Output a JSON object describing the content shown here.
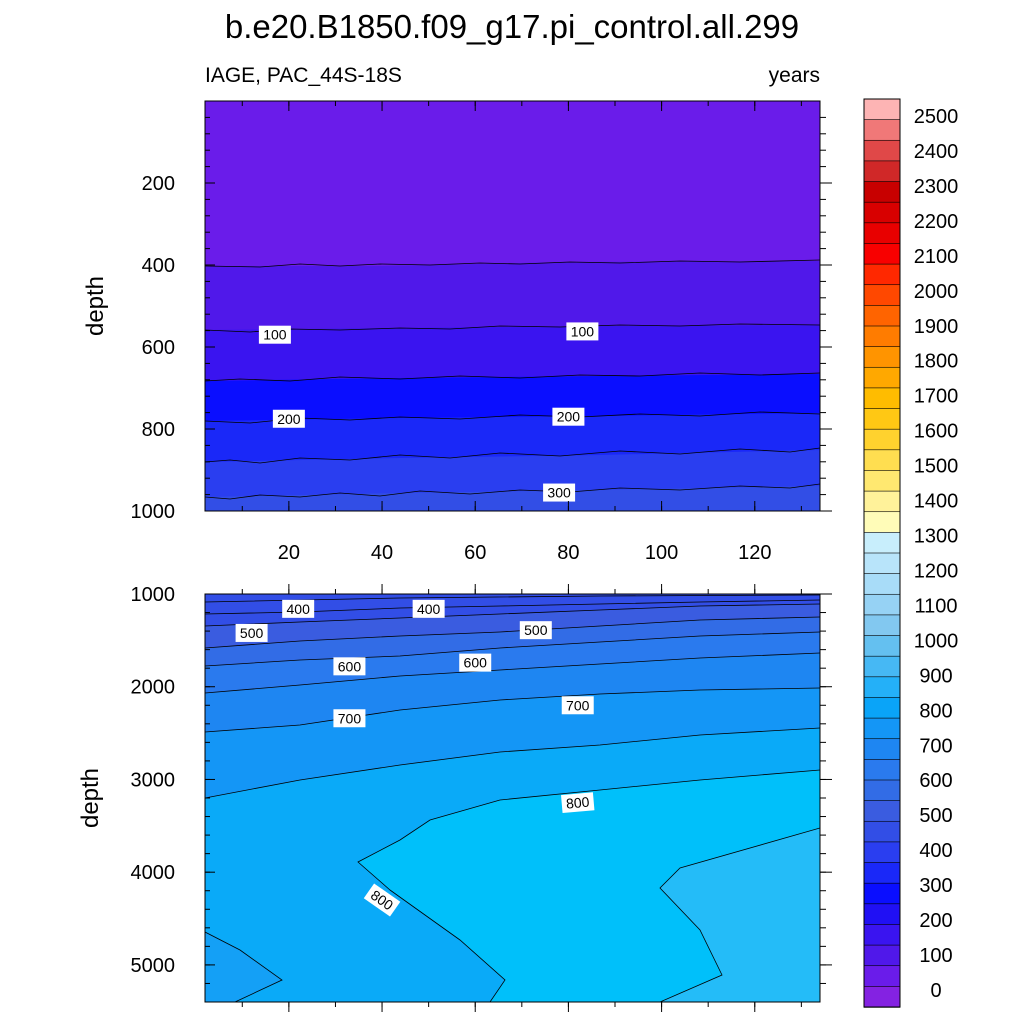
{
  "chart_data": [
    {
      "type": "contour",
      "panel": "upper",
      "title": "b.e20.B1850.f09_g17.pi_control.all.299",
      "left_string": "IAGE, PAC_44S-18S",
      "right_string": "years",
      "xlabel": "",
      "ylabel": "depth",
      "xlim": [
        2,
        134
      ],
      "ylim": [
        1000,
        0
      ],
      "x_ticks": [
        20,
        40,
        60,
        80,
        100,
        120
      ],
      "x_tick_labels": [
        "20",
        "40",
        "60",
        "80",
        "100",
        "120"
      ],
      "y_ticks": [
        200,
        400,
        600,
        800,
        1000
      ],
      "y_tick_labels": [
        "200",
        "400",
        "600",
        "800",
        "1000"
      ],
      "contours": [
        {
          "level": 50,
          "depth_start": 402,
          "depth_end": 390
        },
        {
          "level": 100,
          "depth_start": 557,
          "depth_end": 548
        },
        {
          "level": 150,
          "depth_start": 680,
          "depth_end": 665
        },
        {
          "level": 200,
          "depth_start": 780,
          "depth_end": 760
        },
        {
          "level": 250,
          "depth_start": 878,
          "depth_end": 850
        },
        {
          "level": 300,
          "depth_start": 965,
          "depth_end": 940
        }
      ],
      "contour_labels": [
        {
          "text": "100",
          "x": 17,
          "depth": 570
        },
        {
          "text": "100",
          "x": 83,
          "depth": 562
        },
        {
          "text": "200",
          "x": 20,
          "depth": 775
        },
        {
          "text": "200",
          "x": 80,
          "depth": 770
        },
        {
          "text": "300",
          "x": 78,
          "depth": 955
        }
      ]
    },
    {
      "type": "contour",
      "panel": "lower",
      "xlabel": "",
      "ylabel": "depth",
      "xlim": [
        2,
        134
      ],
      "ylim": [
        5400,
        1000
      ],
      "y_ticks": [
        1000,
        2000,
        3000,
        4000,
        5000
      ],
      "y_tick_labels": [
        "1000",
        "2000",
        "3000",
        "4000",
        "5000"
      ],
      "contours": [
        {
          "level": 400,
          "depth_start": 1080,
          "depth_end": 1030
        },
        {
          "level": 450,
          "depth_start": 1230,
          "depth_end": 1110
        },
        {
          "level": 500,
          "depth_start": 1390,
          "depth_end": 1200
        },
        {
          "level": 550,
          "depth_start": 1560,
          "depth_end": 1320
        },
        {
          "level": 600,
          "depth_start": 1760,
          "depth_end": 1450
        },
        {
          "level": 650,
          "depth_start": 2060,
          "depth_end": 1640
        },
        {
          "level": 700,
          "depth_start": 2460,
          "depth_end": 1880
        },
        {
          "level": 750,
          "depth_start": 3180,
          "depth_end": 2290
        },
        {
          "level": 800,
          "depth_start": 3860,
          "depth_end": 2870
        }
      ],
      "contour_labels": [
        {
          "text": "400",
          "x": 22,
          "depth": 1160
        },
        {
          "text": "400",
          "x": 50,
          "depth": 1160
        },
        {
          "text": "500",
          "x": 12,
          "depth": 1420
        },
        {
          "text": "500",
          "x": 73,
          "depth": 1390
        },
        {
          "text": "600",
          "x": 33,
          "depth": 1780
        },
        {
          "text": "600",
          "x": 60,
          "depth": 1740
        },
        {
          "text": "700",
          "x": 33,
          "depth": 2340
        },
        {
          "text": "700",
          "x": 82,
          "depth": 2200
        },
        {
          "text": "800",
          "x": 82,
          "depth": 3250
        },
        {
          "text": "800",
          "x": 40,
          "depth": 4300
        }
      ]
    }
  ],
  "colorbar": {
    "labels": [
      "2500",
      "2400",
      "2300",
      "2200",
      "2100",
      "2000",
      "1900",
      "1800",
      "1700",
      "1600",
      "1500",
      "1400",
      "1300",
      "1200",
      "1100",
      "1000",
      "900",
      "800",
      "700",
      "600",
      "500",
      "400",
      "300",
      "200",
      "100",
      "0"
    ],
    "colors": [
      "#fdb4b4",
      "#f07878",
      "#e04848",
      "#d02828",
      "#c80000",
      "#d80000",
      "#e80000",
      "#f80000",
      "#ff2800",
      "#ff4800",
      "#ff6400",
      "#ff7c00",
      "#ff9400",
      "#ffa800",
      "#ffbc00",
      "#ffc814",
      "#ffd22e",
      "#ffde50",
      "#ffe870",
      "#fff29a",
      "#fffcb8",
      "#c8eefc",
      "#b8e4fa",
      "#a8dcf8",
      "#96d2f4",
      "#82c8f0",
      "#64c0f0",
      "#46b8f4",
      "#24b0f8",
      "#0aa4f8",
      "#1496f6",
      "#1e86f2",
      "#2a7aee",
      "#326ce6",
      "#3a5ce0",
      "#324ee6",
      "#2a3ef0",
      "#1a28f8",
      "#0a0eff",
      "#2010f4",
      "#3a14f0",
      "#5018ea",
      "#6a1cea",
      "#8422e2"
    ]
  }
}
